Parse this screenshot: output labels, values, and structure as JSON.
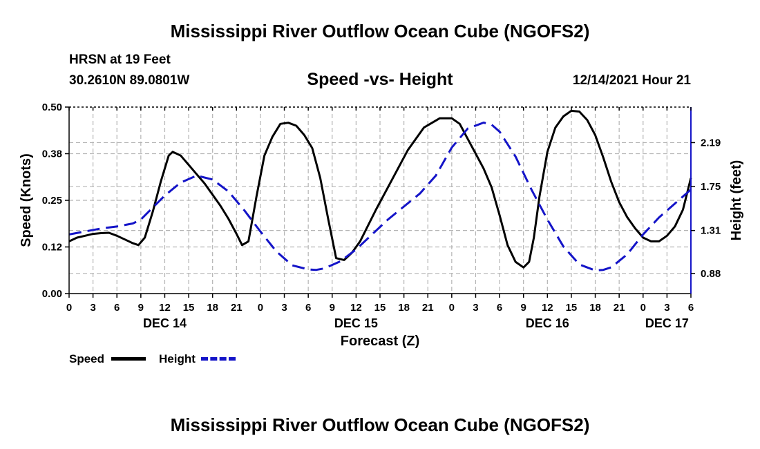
{
  "header": {
    "title": "Mississippi River Outflow Ocean Cube (NGOFS2)",
    "station": "HRSN at 19 Feet",
    "coords": "30.2610N  89.0801W",
    "subtitle": "Speed -vs- Height",
    "datetime": "12/14/2021 Hour 21"
  },
  "footer": {
    "title": "Mississippi River Outflow Ocean Cube (NGOFS2)"
  },
  "legend": {
    "speed_label": "Speed",
    "height_label": "Height"
  },
  "colors": {
    "speed": "#000000",
    "height": "#1414c8",
    "grid": "#b4b4b4"
  },
  "chart_data": {
    "type": "line",
    "title": "Speed -vs- Height",
    "xlabel": "Forecast (Z)",
    "ylabel": "Speed (Knots)",
    "y2label": "Height (feet)",
    "xlim": [
      0,
      78
    ],
    "ylim": [
      0,
      0.5
    ],
    "y2lim": [
      0.678,
      2.546
    ],
    "x_ticks": [
      0,
      3,
      6,
      9,
      12,
      15,
      18,
      21,
      24,
      27,
      30,
      33,
      36,
      39,
      42,
      45,
      48,
      51,
      54,
      57,
      60,
      63,
      66,
      69,
      72,
      75,
      78
    ],
    "x_tick_labels": [
      "0",
      "3",
      "6",
      "9",
      "12",
      "15",
      "18",
      "21",
      "0",
      "3",
      "6",
      "9",
      "12",
      "15",
      "18",
      "21",
      "0",
      "3",
      "6",
      "9",
      "12",
      "15",
      "18",
      "21",
      "0",
      "3",
      "6"
    ],
    "y_ticks": [
      0,
      0.125,
      0.25,
      0.375,
      0.5
    ],
    "y_tick_labels": [
      "0.00",
      "0.12",
      "0.25",
      "0.38",
      "0.50"
    ],
    "y2_ticks": [
      0.88,
      1.31,
      1.75,
      2.19
    ],
    "y2_tick_labels": [
      "0.88",
      "1.31",
      "1.75",
      "2.19"
    ],
    "date_labels": [
      {
        "x": 12,
        "label": "DEC 14"
      },
      {
        "x": 36,
        "label": "DEC 15"
      },
      {
        "x": 60,
        "label": "DEC 16"
      },
      {
        "x": 75,
        "label": "DEC 17"
      }
    ],
    "series": [
      {
        "name": "Speed",
        "axis": "left",
        "style": "solid",
        "x": [
          0,
          1,
          2,
          3,
          4,
          5,
          6,
          7,
          8,
          8.7,
          9.5,
          10.5,
          11.5,
          12.5,
          13,
          14,
          15,
          16,
          17,
          18,
          19,
          20,
          21,
          21.7,
          22.5,
          23.5,
          24.5,
          25.5,
          26.5,
          27.5,
          28.5,
          29.5,
          30.5,
          31.5,
          32.5,
          33.5,
          34.5,
          35.5,
          36.5,
          38.5,
          40.5,
          42.5,
          44.5,
          46.5,
          48,
          49,
          50,
          51,
          52,
          53,
          54,
          55,
          56,
          57,
          57.7,
          58.3,
          59,
          60,
          61,
          62,
          63,
          64,
          65,
          66,
          67,
          68,
          69,
          70,
          71,
          72,
          73,
          74,
          75,
          76,
          77,
          78
        ],
        "values": [
          0.14,
          0.15,
          0.155,
          0.16,
          0.162,
          0.163,
          0.155,
          0.145,
          0.135,
          0.13,
          0.15,
          0.22,
          0.3,
          0.37,
          0.38,
          0.37,
          0.345,
          0.32,
          0.295,
          0.265,
          0.235,
          0.2,
          0.16,
          0.13,
          0.14,
          0.26,
          0.37,
          0.42,
          0.455,
          0.458,
          0.45,
          0.425,
          0.39,
          0.31,
          0.2,
          0.095,
          0.09,
          0.11,
          0.14,
          0.225,
          0.305,
          0.385,
          0.445,
          0.47,
          0.47,
          0.455,
          0.415,
          0.375,
          0.335,
          0.285,
          0.21,
          0.13,
          0.085,
          0.07,
          0.085,
          0.15,
          0.26,
          0.38,
          0.445,
          0.475,
          0.49,
          0.488,
          0.465,
          0.425,
          0.365,
          0.3,
          0.245,
          0.205,
          0.175,
          0.15,
          0.14,
          0.14,
          0.155,
          0.18,
          0.225,
          0.31
        ]
      },
      {
        "name": "Height",
        "axis": "right",
        "style": "dashed",
        "x": [
          0,
          2,
          4,
          6,
          8,
          9,
          10,
          12,
          14,
          16,
          18,
          20,
          22,
          24,
          26,
          28,
          30,
          31,
          32,
          34,
          36,
          38,
          40,
          42,
          44,
          46,
          48,
          50,
          52,
          53,
          54,
          56,
          58,
          60,
          62,
          64,
          66,
          67,
          68,
          70,
          72,
          74,
          76,
          78
        ],
        "values": [
          1.27,
          1.3,
          1.33,
          1.35,
          1.38,
          1.42,
          1.5,
          1.66,
          1.79,
          1.86,
          1.82,
          1.7,
          1.51,
          1.3,
          1.1,
          0.96,
          0.92,
          0.915,
          0.93,
          1.0,
          1.12,
          1.27,
          1.42,
          1.55,
          1.68,
          1.86,
          2.14,
          2.33,
          2.39,
          2.37,
          2.3,
          2.05,
          1.72,
          1.42,
          1.15,
          0.97,
          0.91,
          0.915,
          0.94,
          1.07,
          1.27,
          1.44,
          1.58,
          1.72
        ]
      }
    ]
  }
}
